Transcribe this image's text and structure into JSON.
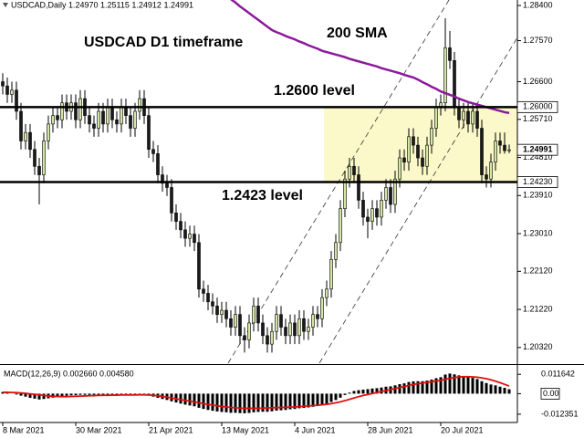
{
  "chart_data": [
    {
      "type": "candlestick",
      "header": "USDCAD,Daily 1.24970 1.25115 1.24912 1.24991",
      "title": "USDCAD D1 timeframe",
      "categories": [
        "8 Mar 2021",
        null,
        null,
        null,
        null,
        null,
        null,
        null,
        null,
        null,
        null,
        null,
        null,
        null,
        null,
        null,
        "30 Mar 2021",
        null,
        null,
        null,
        null,
        null,
        null,
        null,
        null,
        null,
        null,
        null,
        null,
        null,
        null,
        null,
        "21 Apr 2021",
        null,
        null,
        null,
        null,
        null,
        null,
        null,
        null,
        null,
        null,
        null,
        null,
        null,
        null,
        null,
        "13 May 2021",
        null,
        null,
        null,
        null,
        null,
        null,
        null,
        null,
        null,
        null,
        null,
        null,
        null,
        null,
        null,
        "4 Jun 2021",
        null,
        null,
        null,
        null,
        null,
        null,
        null,
        null,
        null,
        null,
        null,
        null,
        null,
        null,
        null,
        "28 Jun 2021",
        null,
        null,
        null,
        null,
        null,
        null,
        null,
        null,
        null,
        null,
        null,
        null,
        null,
        null,
        null,
        "20 Jul 2021",
        null,
        null,
        null,
        null,
        null,
        null,
        null,
        null,
        null,
        null,
        null,
        null,
        null,
        null,
        null
      ],
      "open": [
        1.266,
        1.265,
        1.263,
        1.264,
        1.259,
        1.252,
        1.254,
        1.25,
        1.246,
        1.244,
        1.252,
        1.256,
        1.258,
        1.257,
        1.261,
        1.259,
        1.261,
        1.257,
        1.262,
        1.258,
        1.256,
        1.255,
        1.259,
        1.256,
        1.26,
        1.257,
        1.256,
        1.26,
        1.258,
        1.255,
        1.259,
        1.262,
        1.258,
        1.25,
        1.249,
        1.244,
        1.242,
        1.241,
        1.235,
        1.233,
        1.231,
        1.229,
        1.23,
        1.228,
        1.217,
        1.216,
        1.214,
        1.213,
        1.211,
        1.212,
        1.21,
        1.208,
        1.211,
        1.206,
        1.205,
        1.209,
        1.213,
        1.209,
        1.206,
        1.204,
        1.207,
        1.211,
        1.208,
        1.206,
        1.209,
        1.206,
        1.21,
        1.207,
        1.208,
        1.211,
        1.21,
        1.215,
        1.217,
        1.224,
        1.228,
        1.236,
        1.243,
        1.246,
        1.244,
        1.238,
        1.234,
        1.233,
        1.236,
        1.234,
        1.238,
        1.241,
        1.237,
        1.243,
        1.248,
        1.247,
        1.253,
        1.251,
        1.248,
        1.246,
        1.251,
        1.255,
        1.26,
        1.261,
        1.274,
        1.271,
        1.26,
        1.257,
        1.259,
        1.256,
        1.259,
        1.255,
        1.244,
        1.243,
        1.247,
        1.252,
        1.251,
        1.2497
      ],
      "high": [
        1.268,
        1.267,
        1.266,
        1.266,
        1.261,
        1.256,
        1.256,
        1.252,
        1.248,
        1.254,
        1.258,
        1.26,
        1.26,
        1.263,
        1.263,
        1.263,
        1.263,
        1.264,
        1.264,
        1.26,
        1.258,
        1.261,
        1.261,
        1.262,
        1.262,
        1.259,
        1.262,
        1.262,
        1.26,
        1.261,
        1.264,
        1.264,
        1.26,
        1.252,
        1.251,
        1.246,
        1.244,
        1.243,
        1.237,
        1.235,
        1.233,
        1.232,
        1.232,
        1.23,
        1.219,
        1.218,
        1.216,
        1.215,
        1.214,
        1.214,
        1.212,
        1.213,
        1.213,
        1.208,
        1.211,
        1.215,
        1.215,
        1.211,
        1.208,
        1.209,
        1.213,
        1.213,
        1.21,
        1.211,
        1.211,
        1.212,
        1.212,
        1.21,
        1.213,
        1.213,
        1.217,
        1.219,
        1.226,
        1.23,
        1.238,
        1.245,
        1.248,
        1.248,
        1.246,
        1.24,
        1.236,
        1.238,
        1.238,
        1.24,
        1.243,
        1.243,
        1.245,
        1.25,
        1.25,
        1.255,
        1.255,
        1.253,
        1.25,
        1.253,
        1.257,
        1.262,
        1.263,
        1.281,
        1.278,
        1.273,
        1.262,
        1.261,
        1.261,
        1.261,
        1.261,
        1.257,
        1.246,
        1.249,
        1.254,
        1.254,
        1.254,
        1.25115
      ],
      "low": [
        1.263,
        1.261,
        1.261,
        1.257,
        1.25,
        1.25,
        1.248,
        1.244,
        1.237,
        1.242,
        1.25,
        1.254,
        1.255,
        1.255,
        1.257,
        1.257,
        1.255,
        1.255,
        1.256,
        1.254,
        1.253,
        1.253,
        1.254,
        1.254,
        1.255,
        1.254,
        1.254,
        1.256,
        1.253,
        1.253,
        1.257,
        1.256,
        1.248,
        1.247,
        1.242,
        1.24,
        1.239,
        1.233,
        1.231,
        1.229,
        1.227,
        1.227,
        1.226,
        1.215,
        1.214,
        1.212,
        1.211,
        1.209,
        1.209,
        1.208,
        1.206,
        1.206,
        1.204,
        1.202,
        1.203,
        1.207,
        1.207,
        1.204,
        1.202,
        1.202,
        1.205,
        1.206,
        1.204,
        1.204,
        1.204,
        1.204,
        1.205,
        1.205,
        1.206,
        1.208,
        1.208,
        1.213,
        1.215,
        1.222,
        1.226,
        1.234,
        1.241,
        1.242,
        1.236,
        1.232,
        1.229,
        1.231,
        1.232,
        1.232,
        1.236,
        1.235,
        1.235,
        1.241,
        1.245,
        1.245,
        1.249,
        1.246,
        1.244,
        1.244,
        1.249,
        1.253,
        1.258,
        1.259,
        1.269,
        1.258,
        1.255,
        1.255,
        1.254,
        1.254,
        1.253,
        1.242,
        1.241,
        1.241,
        1.245,
        1.249,
        1.249,
        1.24912
      ],
      "close": [
        1.265,
        1.263,
        1.264,
        1.259,
        1.252,
        1.254,
        1.25,
        1.246,
        1.244,
        1.252,
        1.256,
        1.258,
        1.257,
        1.261,
        1.259,
        1.261,
        1.257,
        1.262,
        1.258,
        1.256,
        1.255,
        1.259,
        1.256,
        1.26,
        1.257,
        1.256,
        1.26,
        1.258,
        1.255,
        1.259,
        1.262,
        1.258,
        1.25,
        1.249,
        1.244,
        1.242,
        1.241,
        1.235,
        1.233,
        1.231,
        1.229,
        1.23,
        1.228,
        1.217,
        1.216,
        1.214,
        1.213,
        1.211,
        1.212,
        1.21,
        1.208,
        1.211,
        1.206,
        1.205,
        1.209,
        1.213,
        1.209,
        1.206,
        1.204,
        1.207,
        1.211,
        1.208,
        1.206,
        1.209,
        1.206,
        1.21,
        1.207,
        1.208,
        1.211,
        1.21,
        1.215,
        1.217,
        1.224,
        1.228,
        1.236,
        1.243,
        1.246,
        1.244,
        1.238,
        1.234,
        1.233,
        1.236,
        1.234,
        1.238,
        1.241,
        1.237,
        1.243,
        1.248,
        1.247,
        1.253,
        1.251,
        1.248,
        1.246,
        1.251,
        1.255,
        1.26,
        1.261,
        1.274,
        1.271,
        1.26,
        1.257,
        1.259,
        1.256,
        1.259,
        1.255,
        1.244,
        1.243,
        1.247,
        1.252,
        1.251,
        1.2497,
        1.24991
      ],
      "up_color": "#d4e6a5",
      "down_color": "#1a1a1a",
      "ylim": [
        1.1995,
        1.2853
      ],
      "yticks": [
        {
          "value": 1.284,
          "label": "1.28400"
        },
        {
          "value": 1.2757,
          "label": "1.27570"
        },
        {
          "value": 1.266,
          "label": "1.26600"
        },
        {
          "value": 1.2571,
          "label": "1.25710"
        },
        {
          "value": 1.2481,
          "label": "1.24810"
        },
        {
          "value": 1.2391,
          "label": "1.23910"
        },
        {
          "value": 1.2301,
          "label": "1.23010"
        },
        {
          "value": 1.2212,
          "label": "1.22120"
        },
        {
          "value": 1.2122,
          "label": "1.21220"
        },
        {
          "value": 1.2032,
          "label": "1.20320"
        }
      ],
      "last_price": {
        "value": 1.24991,
        "label": "1.24991"
      },
      "levels": [
        {
          "value": 1.26,
          "label": "1.26000",
          "text": "1.2600 level"
        },
        {
          "value": 1.2423,
          "label": "1.24230",
          "text": "1.2423 level"
        }
      ],
      "zone_color": "#fbf9c9",
      "sma": {
        "name": "200 SMA",
        "color": "#8b1a9b",
        "values": [
          null,
          null,
          null,
          null,
          null,
          null,
          null,
          null,
          null,
          null,
          null,
          null,
          null,
          null,
          null,
          null,
          null,
          null,
          null,
          null,
          null,
          null,
          null,
          null,
          null,
          null,
          null,
          null,
          null,
          null,
          null,
          null,
          null,
          null,
          null,
          null,
          null,
          null,
          null,
          null,
          null,
          null,
          null,
          null,
          null,
          null,
          null,
          null,
          null,
          null,
          1.2855,
          1.2847,
          1.2838,
          1.283,
          1.2822,
          1.2814,
          1.2806,
          1.2798,
          1.279,
          1.2782,
          1.2777,
          1.2773,
          1.2768,
          1.2764,
          1.276,
          1.2755,
          1.2751,
          1.2746,
          1.2742,
          1.2738,
          1.2733,
          1.273,
          1.2727,
          1.2724,
          1.2721,
          1.2718,
          1.2714,
          1.2711,
          1.2708,
          1.2705,
          1.2702,
          1.2699,
          1.2696,
          1.2692,
          1.2689,
          1.2686,
          1.2683,
          1.268,
          1.2676,
          1.2673,
          1.267,
          1.2665,
          1.2659,
          1.2654,
          1.2648,
          1.2643,
          1.2637,
          1.2633,
          1.2629,
          1.2625,
          1.262,
          1.2616,
          1.2612,
          1.2609,
          1.2606,
          1.2603,
          1.26,
          1.2597,
          1.2594,
          1.2591,
          1.2588,
          1.2586
        ]
      }
    },
    {
      "type": "macd",
      "title": "MACD(12,26,9) 0.002660 0.004580",
      "color": "#000000",
      "values": [
        0.001,
        0.0005,
        0,
        -0.0005,
        -0.0012,
        -0.0018,
        -0.0025,
        -0.003,
        -0.0035,
        -0.0032,
        -0.0028,
        -0.0024,
        -0.002,
        -0.0016,
        -0.0013,
        -0.001,
        -0.0009,
        -0.0007,
        -0.0007,
        -0.0008,
        -0.0008,
        -0.0007,
        -0.0007,
        -0.0006,
        -0.0006,
        -0.0007,
        -0.0006,
        -0.0006,
        -0.0007,
        -0.0006,
        -0.0005,
        -0.0006,
        -0.0012,
        -0.0018,
        -0.0025,
        -0.0032,
        -0.0038,
        -0.0046,
        -0.0053,
        -0.006,
        -0.0066,
        -0.0071,
        -0.0076,
        -0.0085,
        -0.0092,
        -0.0098,
        -0.0103,
        -0.0107,
        -0.011,
        -0.0112,
        -0.0115,
        -0.0115,
        -0.0117,
        -0.0118,
        -0.0116,
        -0.0112,
        -0.011,
        -0.0109,
        -0.0109,
        -0.0106,
        -0.0102,
        -0.01,
        -0.0098,
        -0.0094,
        -0.0092,
        -0.0088,
        -0.0086,
        -0.0083,
        -0.0079,
        -0.0075,
        -0.0068,
        -0.0061,
        -0.005,
        -0.0038,
        -0.0024,
        -0.0008,
        0.0006,
        0.0016,
        0.0021,
        0.0024,
        0.0027,
        0.0031,
        0.0033,
        0.0037,
        0.0042,
        0.0044,
        0.005,
        0.0057,
        0.0062,
        0.007,
        0.0074,
        0.0075,
        0.0075,
        0.0079,
        0.0085,
        0.0093,
        0.0099,
        0.0115,
        0.0121,
        0.0116,
        0.011,
        0.0106,
        0.0099,
        0.0095,
        0.0088,
        0.0075,
        0.0064,
        0.0055,
        0.005,
        0.0042,
        0.0035,
        0.00266
      ],
      "signal": {
        "color": "#e01010",
        "values": [
          0.0008,
          0.0008,
          0.0007,
          0.0006,
          0.0004,
          0.0002,
          -0.0001,
          -0.0004,
          -0.0007,
          -0.001,
          -0.0014,
          -0.0016,
          -0.0017,
          -0.0018,
          -0.0018,
          -0.0017,
          -0.0016,
          -0.0015,
          -0.0014,
          -0.0013,
          -0.0012,
          -0.0011,
          -0.001,
          -0.001,
          -0.0009,
          -0.0009,
          -0.0008,
          -0.0008,
          -0.0008,
          -0.0008,
          -0.0007,
          -0.0007,
          -0.0008,
          -0.001,
          -0.0013,
          -0.0017,
          -0.0021,
          -0.0026,
          -0.0031,
          -0.0037,
          -0.004,
          -0.0045,
          -0.005,
          -0.0055,
          -0.006,
          -0.0065,
          -0.0069,
          -0.0073,
          -0.0077,
          -0.008,
          -0.0083,
          -0.0085,
          -0.0087,
          -0.0088,
          -0.0088,
          -0.0088,
          -0.0088,
          -0.0087,
          -0.0086,
          -0.0085,
          -0.0084,
          -0.0083,
          -0.0082,
          -0.0081,
          -0.008,
          -0.0078,
          -0.0076,
          -0.0074,
          -0.0072,
          -0.007,
          -0.0067,
          -0.0064,
          -0.006,
          -0.0055,
          -0.0049,
          -0.0042,
          -0.0034,
          -0.0026,
          -0.0018,
          -0.0011,
          -0.0005,
          0.0001,
          0.0007,
          0.0013,
          0.0019,
          0.0025,
          0.0031,
          0.0037,
          0.0043,
          0.0049,
          0.0055,
          0.006,
          0.0064,
          0.0068,
          0.0072,
          0.0076,
          0.008,
          0.0086,
          0.0092,
          0.0097,
          0.01,
          0.0102,
          0.0102,
          0.0101,
          0.0099,
          0.0095,
          0.009,
          0.0083,
          0.0075,
          0.0066,
          0.0056,
          0.00458
        ]
      },
      "ylim": [
        -0.0168,
        0.0167
      ],
      "yticks": [
        0.011642,
        {
          "value": 0,
          "label": "0.00"
        },
        -0.012351
      ]
    }
  ]
}
